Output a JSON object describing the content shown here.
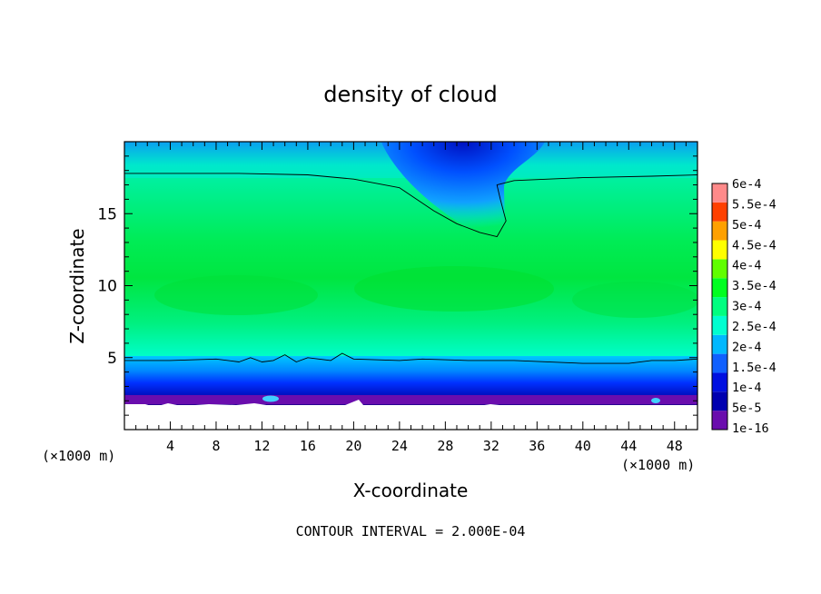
{
  "chart_data": {
    "type": "heatmap",
    "title": "density of cloud",
    "xlabel": "X-coordinate",
    "ylabel": "Z-coordinate",
    "x_unit": "(×1000 m)",
    "x_unit_right": "(×1000 m)",
    "xlim": [
      0,
      50
    ],
    "ylim": [
      0,
      20
    ],
    "x_ticks": [
      4,
      8,
      12,
      16,
      20,
      24,
      28,
      32,
      36,
      40,
      44,
      48
    ],
    "y_ticks": [
      5,
      10,
      15
    ],
    "footer": "CONTOUR INTERVAL = 2.000E-04",
    "colorbar": {
      "labels": [
        "1e-16",
        "5e-5",
        "1e-4",
        "1.5e-4",
        "2e-4",
        "2.5e-4",
        "3e-4",
        "3.5e-4",
        "4e-4",
        "4.5e-4",
        "5e-4",
        "5.5e-4",
        "6e-4"
      ],
      "colors": [
        "#6a0dad",
        "#0000b0",
        "#0010e0",
        "#1060ff",
        "#00b8ff",
        "#00ffd0",
        "#00ff80",
        "#00ff20",
        "#60ff00",
        "#ffff00",
        "#ffa000",
        "#ff4000",
        "#ff8a8a"
      ]
    },
    "contour_lines": [
      {
        "level": "2e-4",
        "points": [
          [
            0,
            17.8
          ],
          [
            10,
            17.8
          ],
          [
            16,
            17.7
          ],
          [
            20,
            17.4
          ],
          [
            24,
            16.8
          ],
          [
            27,
            15.2
          ],
          [
            29,
            14.3
          ],
          [
            31,
            13.7
          ],
          [
            32.5,
            13.4
          ],
          [
            33.3,
            14.5
          ],
          [
            32.8,
            16.0
          ],
          [
            32.5,
            17.0
          ],
          [
            34,
            17.3
          ],
          [
            40,
            17.5
          ],
          [
            46,
            17.6
          ],
          [
            50,
            17.7
          ]
        ]
      },
      {
        "level": "2e-4",
        "points": [
          [
            0,
            4.8
          ],
          [
            4,
            4.8
          ],
          [
            8,
            4.9
          ],
          [
            10,
            4.7
          ],
          [
            11,
            5.0
          ],
          [
            12,
            4.7
          ],
          [
            13,
            4.8
          ],
          [
            14,
            5.2
          ],
          [
            15,
            4.7
          ],
          [
            16,
            5.0
          ],
          [
            18,
            4.8
          ],
          [
            19,
            5.3
          ],
          [
            20,
            4.9
          ],
          [
            24,
            4.8
          ],
          [
            26,
            4.9
          ],
          [
            30,
            4.8
          ],
          [
            34,
            4.8
          ],
          [
            40,
            4.6
          ],
          [
            44,
            4.6
          ],
          [
            46,
            4.8
          ],
          [
            48,
            4.8
          ],
          [
            50,
            4.9
          ]
        ]
      }
    ]
  }
}
